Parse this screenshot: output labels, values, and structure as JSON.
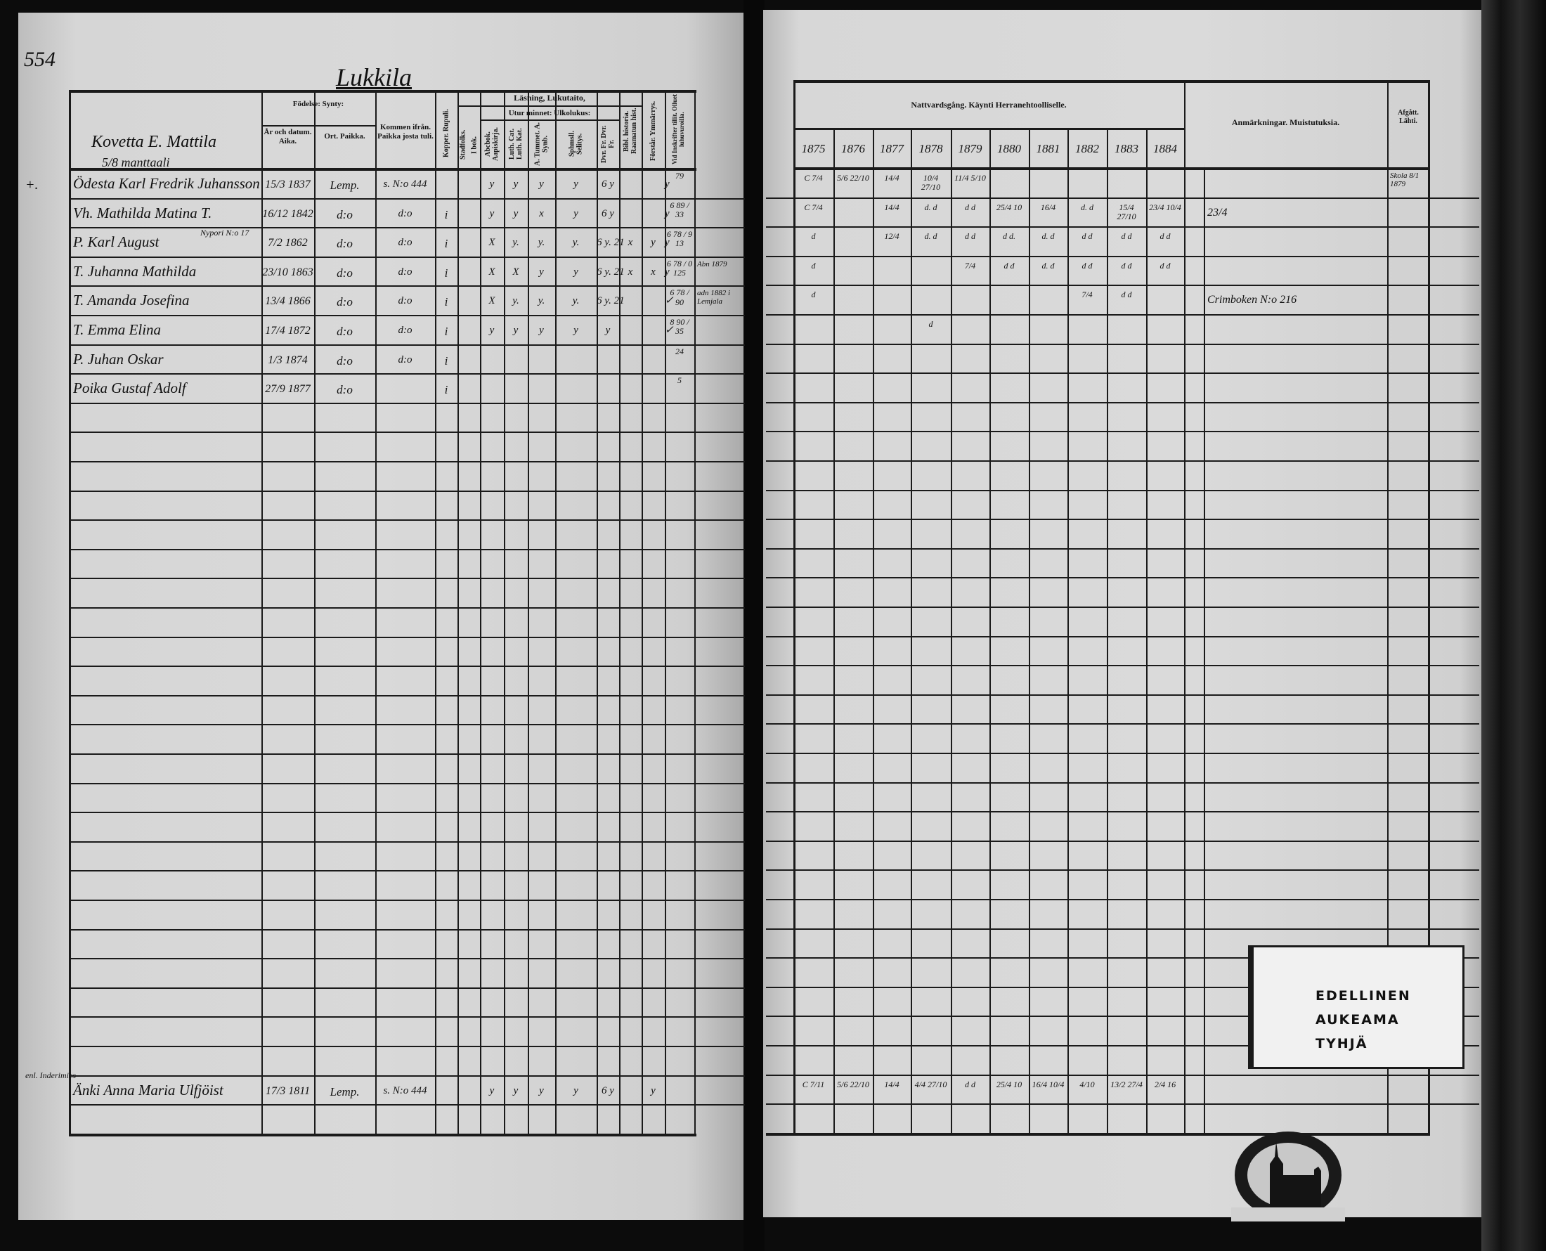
{
  "left_page": {
    "page_number": "554",
    "village": "Lukkila",
    "household": "Kovetta E. Mattila",
    "household_share": "5/8 manttaali",
    "headers": {
      "birth": "Födelse: Synty:",
      "birth_date": "År och datum. Aika.",
      "birth_place": "Ort. Paikka.",
      "came_from": "Kommen ifrån. Paikka josta tuli.",
      "smallpox": "Kopper. Rupuli.",
      "reading": "Läsning, Lukutaito,",
      "by_heart": "Utur minnet: Ulkolukus:",
      "townsfolk": "Stadfolks.",
      "in_book": "I bok.",
      "abc_book": "Abcbok. Aapiskirja.",
      "catechism": "Luth. Cat. Luth. Kat.",
      "a_tummet": "A. Tummet. A. Synb.",
      "explanation": "Sphmsll. Selitys.",
      "dvr": "Dvr. Fr. Dvr. Fr.",
      "bible_history": "Bibl. historia. Raamatun hist.",
      "understanding": "Förstår. Ymmärrys.",
      "hearings": "Vid Inskrifter tillit. Olluet luhuvuroilla."
    },
    "rows": [
      {
        "prefix": "+.",
        "name": "Ödesta Karl Fredrik Juhansson",
        "date": "15/3 1837",
        "place": "Lemp.",
        "from": "s. N:o 444",
        "kopp": "",
        "reading": [
          "",
          "y",
          "y",
          "y",
          "y",
          "6 y",
          "",
          "",
          "y"
        ],
        "score": "79",
        "remark": ""
      },
      {
        "prefix": "",
        "name": "Vh. Mathilda Matina T.",
        "date": "16/12 1842",
        "place": "d:o",
        "from": "d:o",
        "kopp": "i",
        "reading": [
          "",
          "y",
          "y",
          "x",
          "y",
          "6 y",
          "",
          "",
          "y"
        ],
        "score": "6 89 / 33",
        "remark": ""
      },
      {
        "prefix": "",
        "name": "P. Karl August",
        "note_above": "Nypori N:o 17",
        "date": "7/2 1862",
        "place": "d:o",
        "from": "d:o",
        "kopp": "i",
        "reading": [
          "",
          "X",
          "y.",
          "y.",
          "y.",
          "6 y. 21",
          "x",
          "y",
          "y"
        ],
        "score": "6 78 / 9 13",
        "remark": ""
      },
      {
        "prefix": "",
        "name": "T. Juhanna Mathilda",
        "date": "23/10 1863",
        "place": "d:o",
        "from": "d:o",
        "kopp": "i",
        "reading": [
          "",
          "X",
          "X",
          "y",
          "y",
          "6 y. 21",
          "x",
          "x",
          "y"
        ],
        "score": "6 78 / 0 125",
        "remark": "Abn 1879"
      },
      {
        "prefix": "",
        "name": "T. Amanda Josefina",
        "date": "13/4 1866",
        "place": "d:o",
        "from": "d:o",
        "kopp": "i",
        "reading": [
          "",
          "X",
          "y.",
          "y.",
          "y.",
          "6 y. 21",
          "",
          "",
          "✓"
        ],
        "score": "6 78 / 90",
        "remark": "adn 1882 i Lemjala"
      },
      {
        "prefix": "",
        "name": "T. Emma Elina",
        "date": "17/4 1872",
        "place": "d:o",
        "from": "d:o",
        "kopp": "i",
        "reading": [
          "",
          "y",
          "y",
          "y",
          "y",
          "y",
          "",
          "",
          "✓"
        ],
        "score": "8 90 / 35",
        "remark": ""
      },
      {
        "prefix": "",
        "name": "P. Juhan Oskar",
        "date": "1/3 1874",
        "place": "d:o",
        "from": "d:o",
        "kopp": "i",
        "reading": [
          "",
          "",
          "",
          "",
          "",
          "",
          "",
          "",
          ""
        ],
        "score": "24",
        "remark": ""
      },
      {
        "prefix": "",
        "name": "Poika Gustaf Adolf",
        "date": "27/9 1877",
        "place": "d:o",
        "from": "",
        "kopp": "i",
        "reading": [
          "",
          "",
          "",
          "",
          "",
          "",
          "",
          "",
          ""
        ],
        "score": "5",
        "remark": ""
      }
    ],
    "bottom_entry": {
      "note_above": "enl. Inderimies",
      "name": "Änki Anna Maria Ulfjöist",
      "date": "17/3 1811",
      "place": "Lemp.",
      "from": "s. N:o 444",
      "kopp": "",
      "reading": [
        "",
        "y",
        "y",
        "y",
        "y",
        "6 y",
        "",
        "y",
        ""
      ],
      "score": "",
      "remark": ""
    }
  },
  "right_page": {
    "headers": {
      "communion": "Nattvardsgång. Käynti Herranehtoolliselle.",
      "remarks": "Anmärkningar. Muistutuksia.",
      "departed": "Afgått. Lähti."
    },
    "years": [
      "1875",
      "1876",
      "1877",
      "1878",
      "1879",
      "1880",
      "1881",
      "1882",
      "1883",
      "1884"
    ],
    "rows": [
      {
        "cells": [
          "C 7/4",
          "5/6 22/10",
          "14/4",
          "10/4 27/10",
          "11/4 5/10",
          "",
          "",
          "",
          "",
          ""
        ],
        "remark": "",
        "departed": "Skola 8/1 1879"
      },
      {
        "cells": [
          "C 7/4",
          "",
          "14/4",
          "d. d",
          "d d",
          "25/4 10",
          "16/4",
          "d. d",
          "15/4 27/10",
          "23/4 10/4"
        ],
        "remark": "23/4",
        "departed": ""
      },
      {
        "cells": [
          "d",
          "",
          "12/4",
          "d. d",
          "d d",
          "d d.",
          "d. d",
          "d d",
          "d d",
          "d d"
        ],
        "remark": "",
        "departed": ""
      },
      {
        "cells": [
          "d",
          "",
          "",
          "",
          "7/4",
          "d d",
          "d. d",
          "d d",
          "d d",
          "d d"
        ],
        "remark": "",
        "departed": ""
      },
      {
        "cells": [
          "d",
          "",
          "",
          "",
          "",
          "",
          "",
          "7/4",
          "d d",
          ""
        ],
        "remark": "Crimboken N:o 216",
        "departed": ""
      },
      {
        "cells": [
          "",
          "",
          "",
          "d",
          "",
          "",
          "",
          "",
          "",
          ""
        ],
        "remark": "",
        "departed": ""
      }
    ],
    "bottom_entry": {
      "cells": [
        "C 7/11",
        "5/6 22/10",
        "14/4",
        "4/4 27/10",
        "d d",
        "25/4 10",
        "16/4 10/4",
        "4/10",
        "13/2 27/4",
        "2/4 16"
      ],
      "remark": "",
      "departed": ""
    }
  },
  "sticker": {
    "line1": "EDELLINEN",
    "line2": "AUKEAMA",
    "line3": "TYHJÄ"
  },
  "stamp": {
    "type": "archive-seal-church-icon"
  },
  "colors": {
    "paper": "#d8d8d8",
    "ink": "#151515",
    "border": "#0c0c0c"
  }
}
